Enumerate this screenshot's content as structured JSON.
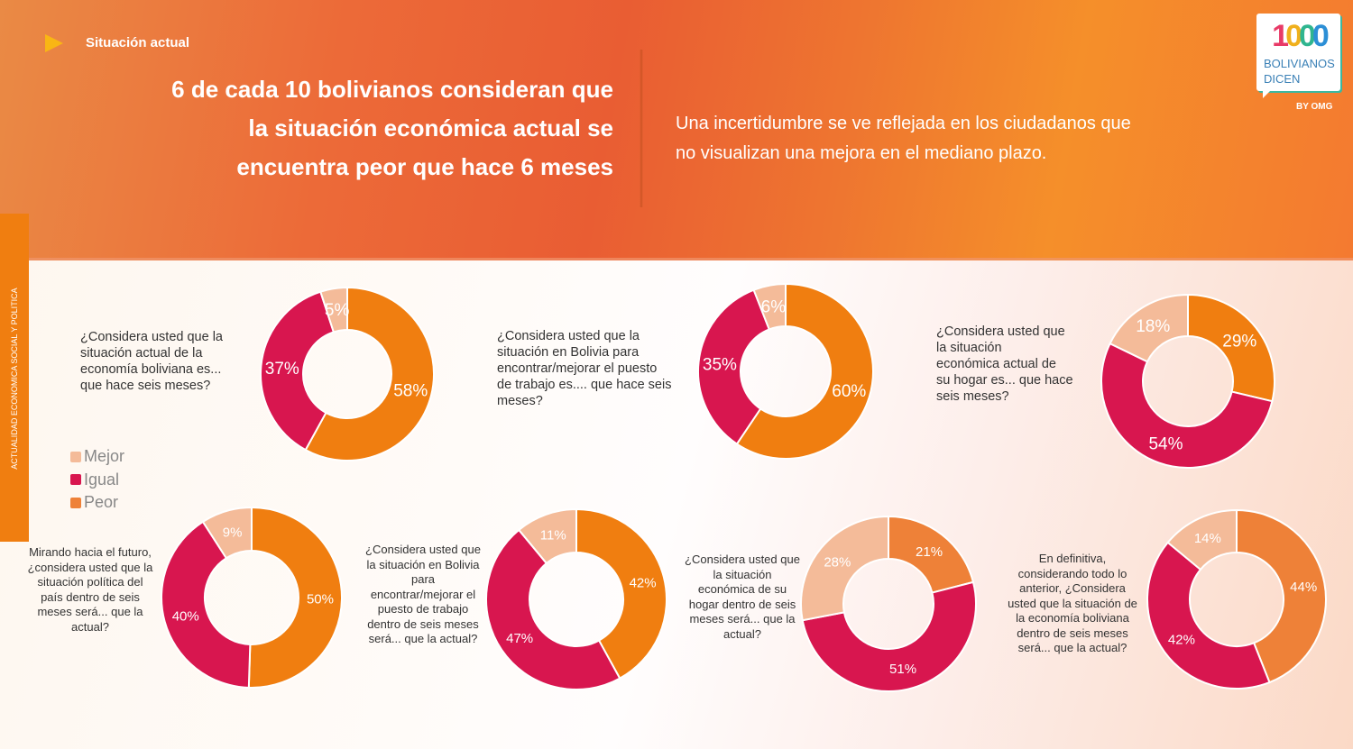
{
  "header": {
    "section_label": "Situación actual",
    "headline": [
      "6 de cada 10 bolivianos consideran que",
      "la situación económica actual se",
      "encuentra peor que hace 6 meses"
    ],
    "subtext": [
      "Una incertidumbre se ve reflejada en los ciudadanos que",
      "no visualizan una mejora en el mediano plazo."
    ],
    "logo": {
      "number": [
        "1",
        "0",
        "0",
        "0"
      ],
      "line1": "BOLIVIANOS",
      "line2": "DICEN",
      "by": "BY OMG"
    }
  },
  "sidebar": {
    "label": "ACTUALIDAD ECONOMICA SOCIAL Y POLITICA"
  },
  "colors": {
    "Mejor": "#f4bb99",
    "Igual": "#d8164f",
    "Peor": "#f07e10",
    "Peor_alt": "#ee8138"
  },
  "chart_data": [
    {
      "type": "pie",
      "variant": "donut",
      "question": [
        "¿Considera usted que la",
        "situación actual de la",
        "economía boliviana es...",
        "que hace seis meses?"
      ],
      "categories": [
        "Peor",
        "Igual",
        "Mejor"
      ],
      "values": [
        58,
        37,
        5
      ],
      "labels": [
        "58%",
        "37%",
        "5%"
      ]
    },
    {
      "type": "pie",
      "variant": "donut",
      "question": [
        "¿Considera usted que la",
        "situación en Bolivia para",
        "encontrar/mejorar el puesto",
        "de trabajo es.... que hace seis",
        "meses?"
      ],
      "categories": [
        "Peor",
        "Igual",
        "Mejor"
      ],
      "values": [
        60,
        35,
        6
      ],
      "labels": [
        "60%",
        "35%",
        "6%"
      ]
    },
    {
      "type": "pie",
      "variant": "donut",
      "question": [
        "¿Considera usted que",
        "la situación",
        "económica actual de",
        "su hogar es... que hace",
        "seis meses?"
      ],
      "categories": [
        "Peor",
        "Igual",
        "Mejor"
      ],
      "values": [
        29,
        54,
        18
      ],
      "labels": [
        "29%",
        "54%",
        "18%"
      ]
    },
    {
      "type": "pie",
      "variant": "donut",
      "question": [
        "Mirando hacia el futuro,",
        "¿considera usted que la",
        "situación política del",
        "país dentro de seis",
        "meses será... que la",
        "actual?"
      ],
      "categories": [
        "Peor",
        "Igual",
        "Mejor"
      ],
      "values": [
        50,
        40,
        9
      ],
      "labels": [
        "50%",
        "40%",
        "9%"
      ]
    },
    {
      "type": "pie",
      "variant": "donut",
      "question": [
        "¿Considera usted que",
        "la situación en Bolivia",
        "para",
        "encontrar/mejorar el",
        "puesto de trabajo",
        "dentro de seis meses",
        "será... que la actual?"
      ],
      "categories": [
        "Peor",
        "Igual",
        "Mejor"
      ],
      "values": [
        42,
        47,
        11
      ],
      "labels": [
        "42%",
        "47%",
        "11%"
      ]
    },
    {
      "type": "pie",
      "variant": "donut",
      "question": [
        "¿Considera usted que",
        "la situación",
        "económica de su",
        "hogar dentro de seis",
        "meses será... que la",
        "actual?"
      ],
      "categories": [
        "Peor",
        "Igual",
        "Mejor"
      ],
      "values": [
        21,
        51,
        28
      ],
      "labels": [
        "21%",
        "51%",
        "28%"
      ]
    },
    {
      "type": "pie",
      "variant": "donut",
      "question": [
        "En definitiva,",
        "considerando todo lo",
        "anterior, ¿Considera",
        "usted que la situación de",
        "la economía boliviana",
        "dentro de seis meses",
        "será... que la actual?"
      ],
      "categories": [
        "Peor",
        "Igual",
        "Mejor"
      ],
      "values": [
        44,
        42,
        14
      ],
      "labels": [
        "44%",
        "42%",
        "14%"
      ]
    }
  ],
  "legend": [
    {
      "label": "Mejor",
      "color": "#f4bb99"
    },
    {
      "label": "Igual",
      "color": "#d8164f"
    },
    {
      "label": "Peor",
      "color": "#ee8138"
    }
  ]
}
